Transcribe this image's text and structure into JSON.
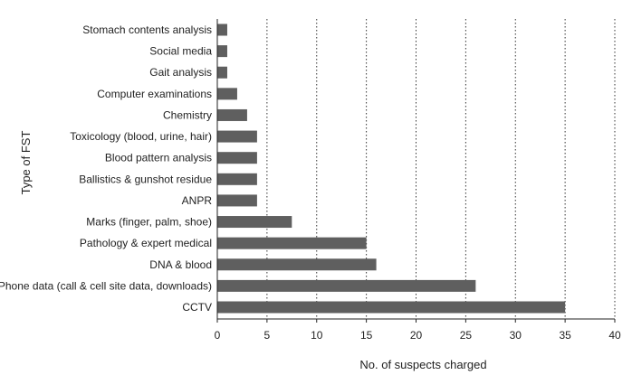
{
  "chart_data": {
    "type": "bar",
    "orientation": "horizontal",
    "xlabel": "No. of suspects charged",
    "ylabel": "Type of FST",
    "xlim": [
      0,
      40
    ],
    "xticks": [
      0,
      5,
      10,
      15,
      20,
      25,
      30,
      35,
      40
    ],
    "grid": "vertical dotted",
    "bar_color": "#5f5f5f",
    "categories": [
      "Stomach contents analysis",
      "Social media",
      "Gait analysis",
      "Computer examinations",
      "Chemistry",
      "Toxicology (blood, urine, hair)",
      "Blood pattern analysis",
      "Ballistics & gunshot residue",
      "ANPR",
      "Marks (finger, palm, shoe)",
      "Pathology & expert medical",
      "DNA & blood",
      "Phone data (call & cell site data, downloads)",
      "CCTV"
    ],
    "values": [
      1,
      1,
      1,
      2,
      3,
      4,
      4,
      4,
      4,
      7.5,
      15,
      16,
      26,
      35
    ]
  }
}
